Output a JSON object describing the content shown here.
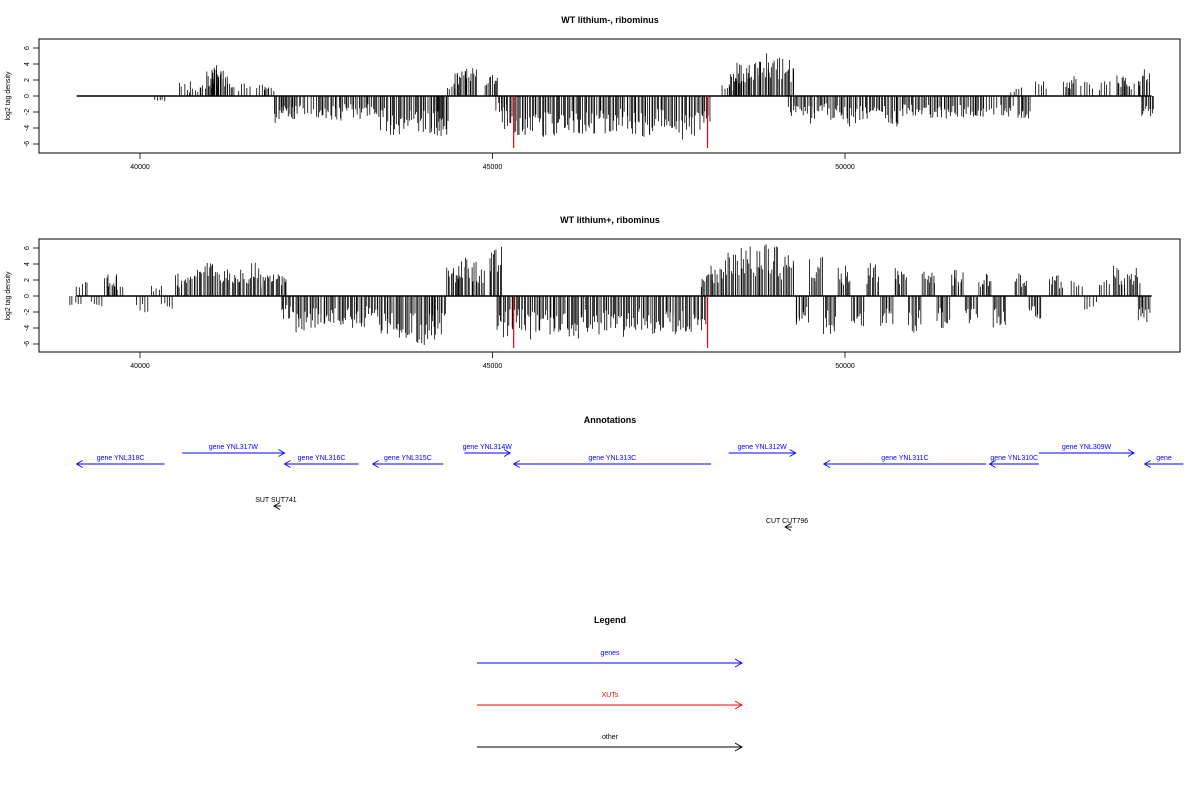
{
  "chart_data": [
    {
      "type": "bar",
      "title": "WT lithium-, ribominus",
      "ylabel": "log2 tag density",
      "xlabel": "",
      "x_ticks": [
        40000,
        45000,
        50000
      ],
      "y_ticks": [
        -6,
        -4,
        -2,
        0,
        2,
        4,
        6
      ],
      "xlim": [
        38500,
        54800
      ],
      "ylim": [
        -7,
        7
      ],
      "grid": false,
      "highlight_color": "#e8000b",
      "highlight_lines": [
        45300,
        48050
      ],
      "bins": [
        [
          40300,
          -1.0
        ],
        [
          40650,
          1.9
        ],
        [
          40800,
          1.1
        ],
        [
          40950,
          1.7
        ],
        [
          41050,
          3.3
        ],
        [
          41100,
          4.1
        ],
        [
          41250,
          3.0
        ],
        [
          41500,
          1.6
        ],
        [
          41750,
          1.9
        ],
        [
          41850,
          1.1
        ],
        [
          42000,
          -3.5
        ],
        [
          42100,
          -2.1
        ],
        [
          42200,
          -3.0
        ],
        [
          42400,
          -2.5
        ],
        [
          42600,
          -3.2
        ],
        [
          42800,
          -3.3
        ],
        [
          43000,
          -2.9
        ],
        [
          43200,
          -3.0
        ],
        [
          43400,
          -4.3
        ],
        [
          43600,
          -4.9
        ],
        [
          43800,
          -5.0
        ],
        [
          44000,
          -5.2
        ],
        [
          44200,
          -4.8
        ],
        [
          44300,
          -5.1
        ],
        [
          44450,
          1.8
        ],
        [
          44550,
          3.1
        ],
        [
          44700,
          3.8
        ],
        [
          45000,
          2.8
        ],
        [
          45150,
          -1.9
        ],
        [
          45200,
          -4.2
        ],
        [
          45400,
          -4.9
        ],
        [
          45600,
          -5.0
        ],
        [
          45800,
          -5.4
        ],
        [
          46000,
          -5.0
        ],
        [
          46200,
          -4.8
        ],
        [
          46400,
          -5.2
        ],
        [
          46600,
          -5.0
        ],
        [
          46800,
          -4.6
        ],
        [
          47000,
          -4.9
        ],
        [
          47200,
          -5.1
        ],
        [
          47400,
          -4.7
        ],
        [
          47600,
          -4.9
        ],
        [
          47800,
          -5.5
        ],
        [
          48000,
          -4.6
        ],
        [
          48350,
          1.5
        ],
        [
          48450,
          3.2
        ],
        [
          48550,
          4.2
        ],
        [
          48700,
          4.5
        ],
        [
          48850,
          5.4
        ],
        [
          49000,
          4.8
        ],
        [
          49200,
          5.0
        ],
        [
          49300,
          -3.0
        ],
        [
          49500,
          -3.5
        ],
        [
          49700,
          -2.6
        ],
        [
          49900,
          -3.2
        ],
        [
          50100,
          -3.8
        ],
        [
          50300,
          -3.0
        ],
        [
          50500,
          -3.3
        ],
        [
          50700,
          -3.9
        ],
        [
          50900,
          -2.8
        ],
        [
          51100,
          -3.1
        ],
        [
          51300,
          -3.4
        ],
        [
          51500,
          -2.9
        ],
        [
          51700,
          -3.0
        ],
        [
          51900,
          -3.2
        ],
        [
          52100,
          -2.5
        ],
        [
          52300,
          -3.0
        ],
        [
          52450,
          1.2
        ],
        [
          52550,
          -2.9
        ],
        [
          52800,
          2.2
        ],
        [
          53200,
          2.6
        ],
        [
          53450,
          2.3
        ],
        [
          53700,
          2.1
        ],
        [
          53950,
          3.1
        ],
        [
          54050,
          2.3
        ],
        [
          54250,
          3.4
        ],
        [
          54300,
          -2.6
        ]
      ]
    },
    {
      "type": "bar",
      "title": "WT lithium+, ribominus",
      "ylabel": "log2 tag density",
      "xlabel": "",
      "x_ticks": [
        40000,
        45000,
        50000
      ],
      "y_ticks": [
        -6,
        -4,
        -2,
        0,
        2,
        4,
        6
      ],
      "xlim": [
        38500,
        54800
      ],
      "ylim": [
        -7,
        7
      ],
      "grid": false,
      "highlight_color": "#e8000b",
      "highlight_lines": [
        45300,
        48050
      ],
      "bins": [
        [
          39100,
          -1.5
        ],
        [
          39200,
          2.4
        ],
        [
          39400,
          -1.3
        ],
        [
          39600,
          2.8
        ],
        [
          39700,
          1.3
        ],
        [
          40050,
          -2.2
        ],
        [
          40250,
          1.6
        ],
        [
          40400,
          -1.6
        ],
        [
          40600,
          2.9
        ],
        [
          40800,
          3.6
        ],
        [
          41000,
          4.4
        ],
        [
          41200,
          3.8
        ],
        [
          41400,
          3.3
        ],
        [
          41600,
          4.2
        ],
        [
          41800,
          3.0
        ],
        [
          42000,
          3.6
        ],
        [
          42100,
          -3.0
        ],
        [
          42300,
          -4.6
        ],
        [
          42500,
          -4.0
        ],
        [
          42700,
          -3.6
        ],
        [
          42900,
          -3.8
        ],
        [
          43100,
          -4.0
        ],
        [
          43300,
          -3.3
        ],
        [
          43500,
          -5.0
        ],
        [
          43700,
          -5.8
        ],
        [
          43900,
          -6.0
        ],
        [
          44100,
          -6.2
        ],
        [
          44250,
          -5.0
        ],
        [
          44450,
          3.9
        ],
        [
          44600,
          4.8
        ],
        [
          44800,
          4.6
        ],
        [
          45050,
          6.6
        ],
        [
          45150,
          -5.2
        ],
        [
          45350,
          -4.3
        ],
        [
          45550,
          -5.6
        ],
        [
          45750,
          -5.0
        ],
        [
          45950,
          -4.5
        ],
        [
          46150,
          -5.4
        ],
        [
          46350,
          -4.8
        ],
        [
          46550,
          -5.0
        ],
        [
          46750,
          -4.6
        ],
        [
          46950,
          -5.3
        ],
        [
          47150,
          -4.4
        ],
        [
          47350,
          -5.0
        ],
        [
          47550,
          -5.1
        ],
        [
          47750,
          -4.8
        ],
        [
          47950,
          -5.4
        ],
        [
          48050,
          3.1
        ],
        [
          48200,
          4.6
        ],
        [
          48400,
          5.8
        ],
        [
          48600,
          6.3
        ],
        [
          48800,
          6.6
        ],
        [
          49000,
          6.2
        ],
        [
          49200,
          5.6
        ],
        [
          49400,
          -3.6
        ],
        [
          49600,
          4.9
        ],
        [
          49800,
          -5.1
        ],
        [
          50000,
          3.9
        ],
        [
          50200,
          -3.9
        ],
        [
          50400,
          4.3
        ],
        [
          50600,
          -4.3
        ],
        [
          50800,
          3.5
        ],
        [
          51000,
          -4.9
        ],
        [
          51200,
          3.6
        ],
        [
          51400,
          -4.2
        ],
        [
          51600,
          3.4
        ],
        [
          51800,
          -3.6
        ],
        [
          52000,
          3.0
        ],
        [
          52200,
          -4.1
        ],
        [
          52500,
          3.1
        ],
        [
          52700,
          -3.0
        ],
        [
          53000,
          2.6
        ],
        [
          53300,
          2.1
        ],
        [
          53500,
          -1.8
        ],
        [
          53700,
          2.0
        ],
        [
          53900,
          3.8
        ],
        [
          54100,
          3.5
        ],
        [
          54250,
          -3.4
        ]
      ]
    },
    {
      "type": "table",
      "title": "Annotations",
      "features": [
        {
          "label": "gene YNL318C",
          "class": "genes",
          "start": 39100,
          "end": 40350,
          "strand": "-",
          "row": 1
        },
        {
          "label": "gene YNL317W",
          "class": "genes",
          "start": 40600,
          "end": 42050,
          "strand": "+",
          "row": 0
        },
        {
          "label": "gene YNL316C",
          "class": "genes",
          "start": 42050,
          "end": 43100,
          "strand": "-",
          "row": 1
        },
        {
          "label": "gene YNL315C",
          "class": "genes",
          "start": 43300,
          "end": 44300,
          "strand": "-",
          "row": 1
        },
        {
          "label": "gene YNL314W",
          "class": "genes",
          "start": 44600,
          "end": 45250,
          "strand": "+",
          "row": 0
        },
        {
          "label": "gene YNL313C",
          "class": "genes",
          "start": 45300,
          "end": 48100,
          "strand": "-",
          "row": 1
        },
        {
          "label": "gene YNL312W",
          "class": "genes",
          "start": 48350,
          "end": 49300,
          "strand": "+",
          "row": 0
        },
        {
          "label": "gene YNL311C",
          "class": "genes",
          "start": 49700,
          "end": 52000,
          "strand": "-",
          "row": 1
        },
        {
          "label": "gene YNL310C",
          "class": "genes",
          "start": 52050,
          "end": 52750,
          "strand": "-",
          "row": 1
        },
        {
          "label": "gene YNL309W",
          "class": "genes",
          "start": 52750,
          "end": 54100,
          "strand": "+",
          "row": 0
        },
        {
          "label": "gene",
          "class": "genes",
          "start": 54250,
          "end": 54800,
          "strand": "-",
          "row": 1
        },
        {
          "label": "SUT SUT741",
          "class": "other",
          "start": 41900,
          "end": 42000,
          "strand": "-",
          "row": 2
        },
        {
          "label": "CUT CUT796",
          "class": "other",
          "start": 49150,
          "end": 49250,
          "strand": "-",
          "row": 3
        }
      ],
      "colors": {
        "genes": "#0000ff",
        "XUTs": "#ff0000",
        "other": "#000000"
      }
    },
    {
      "type": "table",
      "title": "Legend",
      "entries": [
        {
          "label": "genes",
          "color": "#0000ff"
        },
        {
          "label": "XUTs",
          "color": "#ff0000"
        },
        {
          "label": "other",
          "color": "#000000"
        }
      ]
    }
  ]
}
